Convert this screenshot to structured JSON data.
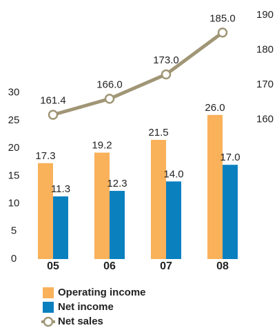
{
  "chart_data": {
    "type": "bar",
    "categories": [
      "05",
      "06",
      "07",
      "08"
    ],
    "series": [
      {
        "name": "Operating income",
        "color": "#f9b15a",
        "values": [
          17.3,
          19.2,
          21.5,
          26.0
        ],
        "value_labels": [
          "17.3",
          "19.2",
          "21.5",
          "26.0"
        ]
      },
      {
        "name": "Net income",
        "color": "#0a80bf",
        "values": [
          11.3,
          12.3,
          14.0,
          17.0
        ],
        "value_labels": [
          "11.3",
          "12.3",
          "14.0",
          "17.0"
        ]
      },
      {
        "name": "Net sales",
        "color": "#a09676",
        "type": "line",
        "axis": "y2",
        "values": [
          161.4,
          166.0,
          173.0,
          185.0
        ],
        "value_labels": [
          "161.4",
          "166.0",
          "173.0",
          "185.0"
        ]
      }
    ],
    "ylim": [
      0,
      44
    ],
    "yticks": [
      0,
      5,
      10,
      15,
      20,
      25,
      30
    ],
    "y2lim": [
      120,
      190
    ],
    "y2ticks": [
      160,
      170,
      180,
      190
    ]
  }
}
